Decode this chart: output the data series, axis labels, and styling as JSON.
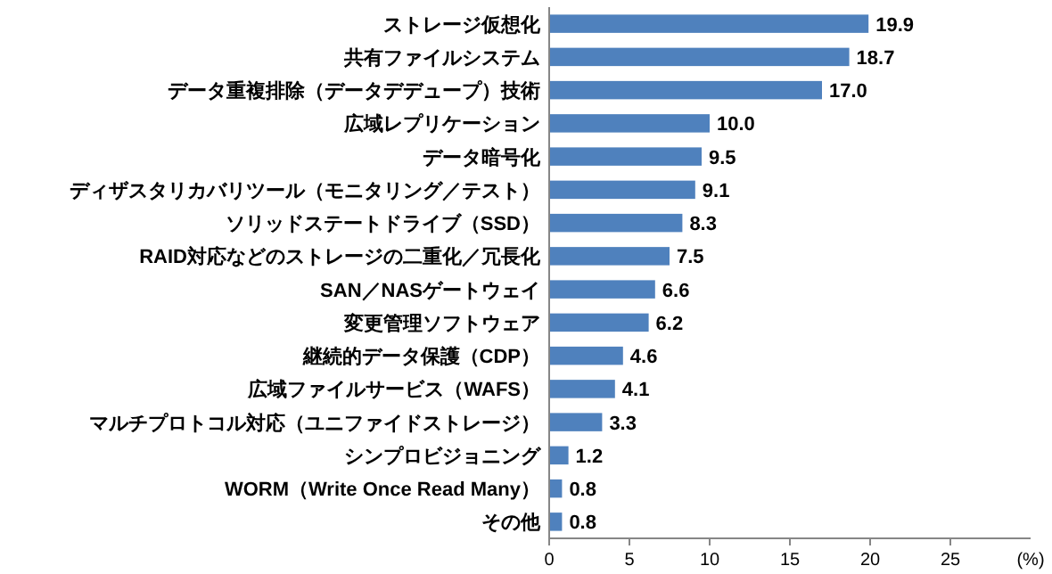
{
  "chart_data": {
    "type": "bar",
    "orientation": "horizontal",
    "categories": [
      "ストレージ仮想化",
      "共有ファイルシステム",
      "データ重複排除（データデデュープ）技術",
      "広域レプリケーション",
      "データ暗号化",
      "ディザスタリカバリツール（モニタリング／テスト）",
      "ソリッドステートドライブ（SSD）",
      "RAID対応などのストレージの二重化／冗長化",
      "SAN／NASゲートウェイ",
      "変更管理ソフトウェア",
      "継続的データ保護（CDP）",
      "広域ファイルサービス（WAFS）",
      "マルチプロトコル対応（ユニファイドストレージ）",
      "シンプロビジョニング",
      "WORM（Write Once Read Many）",
      "その他"
    ],
    "values": [
      19.9,
      18.7,
      17.0,
      10.0,
      9.5,
      9.1,
      8.3,
      7.5,
      6.6,
      6.2,
      4.6,
      4.1,
      3.3,
      1.2,
      0.8,
      0.8
    ],
    "value_labels": [
      "19.9",
      "18.7",
      "17.0",
      "10.0",
      "9.5",
      "9.1",
      "8.3",
      "7.5",
      "6.6",
      "6.2",
      "4.6",
      "4.1",
      "3.3",
      "1.2",
      "0.8",
      "0.8"
    ],
    "color": "#4f81bd",
    "xlim": [
      0,
      30
    ],
    "xticks": [
      0,
      5,
      10,
      15,
      20,
      25
    ],
    "xlabel": "(%)",
    "grid": false
  }
}
